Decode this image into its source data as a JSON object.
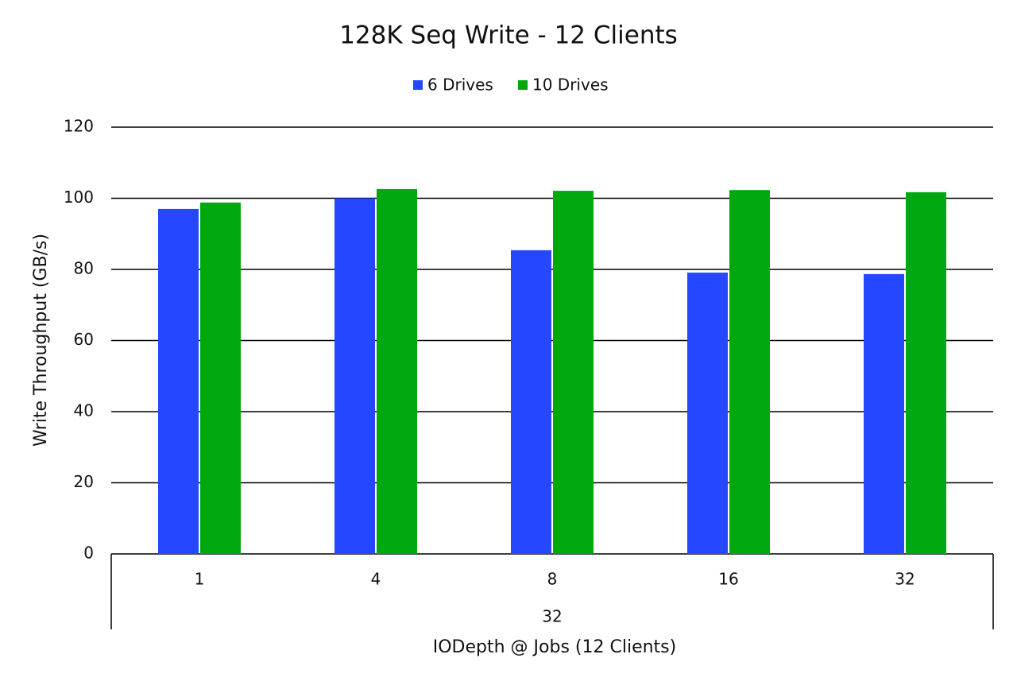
{
  "chart_data": {
    "type": "bar",
    "title": "128K Seq Write - 12 Clients",
    "categories": [
      "1",
      "4",
      "8",
      "16",
      "32"
    ],
    "group_label": "32",
    "x_label": "IODepth @ Jobs (12 Clients)",
    "y_label": "Write Throughput (GB/s)",
    "series": [
      {
        "name": "6 Drives",
        "color": "#2447ff",
        "values": [
          97,
          100,
          85.4,
          79.1,
          78.7
        ]
      },
      {
        "name": "10 Drives",
        "color": "#00a80f",
        "values": [
          98.8,
          102.6,
          102.1,
          102.3,
          101.7
        ]
      }
    ],
    "ylim": [
      0,
      120
    ],
    "yticks": [
      0,
      20,
      40,
      60,
      80,
      100,
      120
    ],
    "grid": true,
    "legend": "top"
  }
}
